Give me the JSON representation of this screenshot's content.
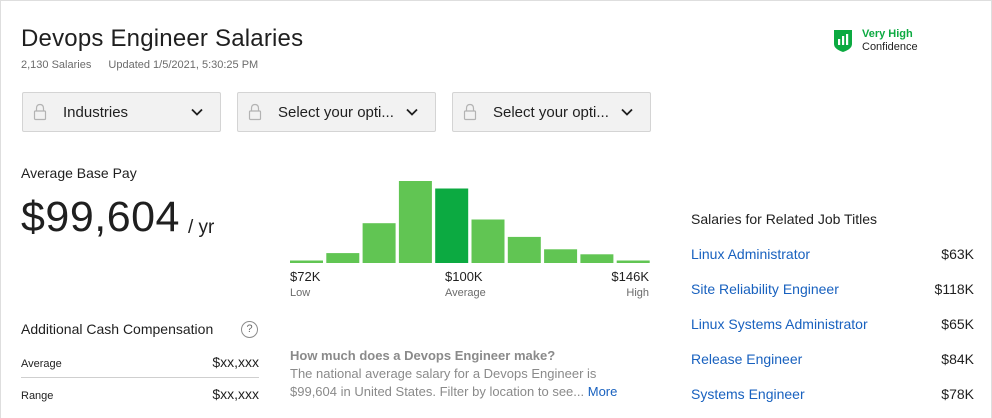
{
  "header": {
    "title": "Devops Engineer Salaries",
    "salary_count": "2,130 Salaries",
    "updated": "Updated 1/5/2021, 5:30:25 PM"
  },
  "confidence": {
    "level": "Very High",
    "word": "Confidence",
    "icon": "shield-chart-icon",
    "color": "#0caa41"
  },
  "filters": [
    {
      "label": "Industries"
    },
    {
      "label": "Select your opti..."
    },
    {
      "label": "Select your opti..."
    }
  ],
  "pay": {
    "label": "Average Base Pay",
    "amount": "$99,604",
    "unit": "/ yr"
  },
  "chart_data": {
    "type": "bar",
    "title": "",
    "values": [
      2,
      8,
      32,
      66,
      60,
      35,
      21,
      11,
      7,
      2
    ],
    "highlight_index": 4,
    "ylim": [
      0,
      66
    ],
    "colors": {
      "bar": "#61c553",
      "highlight": "#0caa41"
    },
    "ticks": [
      {
        "value": "$72K",
        "label": "Low"
      },
      {
        "value": "$100K",
        "label": "Average"
      },
      {
        "value": "$146K",
        "label": "High"
      }
    ]
  },
  "cash": {
    "label": "Additional Cash Compensation",
    "help": "?",
    "rows": [
      {
        "label": "Average",
        "value": "$xx,xxx"
      },
      {
        "label": "Range",
        "value": "$xx,xxx"
      }
    ]
  },
  "faq": {
    "question": "How much does a Devops Engineer make?",
    "answer": "The national average salary for a Devops Engineer is $99,604 in United States. Filter by location to see...",
    "more": "More"
  },
  "related": {
    "title": "Salaries for Related Job Titles",
    "items": [
      {
        "job": "Linux Administrator",
        "salary": "$63K"
      },
      {
        "job": "Site Reliability Engineer",
        "salary": "$118K"
      },
      {
        "job": "Linux Systems Administrator",
        "salary": "$65K"
      },
      {
        "job": "Release Engineer",
        "salary": "$84K"
      },
      {
        "job": "Systems Engineer",
        "salary": "$78K"
      }
    ]
  }
}
